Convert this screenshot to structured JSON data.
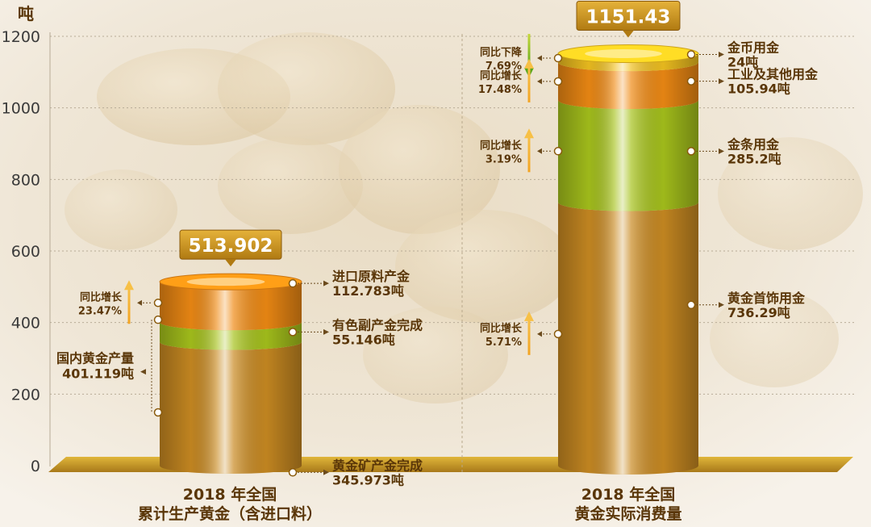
{
  "chart_data": {
    "type": "bar",
    "y_unit": "吨",
    "ylim": [
      0,
      1200
    ],
    "y_ticks": [
      "0",
      "200",
      "400",
      "600",
      "800",
      "1000",
      "1200"
    ],
    "grid": true,
    "categories": [
      {
        "line1": "2018 年全国",
        "line2": "累计生产黄金（含进口料）"
      },
      {
        "line1": "2018 年全国",
        "line2": "黄金实际消费量"
      }
    ],
    "columns": [
      {
        "total_label": "513.902",
        "total": 513.902,
        "segments": [
          {
            "name": "黄金矿产金完成",
            "value_label": "345.973吨",
            "value": 345.973,
            "color": "#c98a22"
          },
          {
            "name": "有色副产金完成",
            "value_label": "55.146吨",
            "value": 55.146,
            "color": "#a6c21c"
          },
          {
            "name": "进口原料产金",
            "value_label": "112.783吨",
            "value": 112.783,
            "color": "#ef8a14"
          }
        ],
        "group_bracket": {
          "name": "国内黄金产量",
          "value_label": "401.119吨",
          "value": 401.119
        },
        "changes": [
          {
            "label": "同比增长",
            "value": "23.47%",
            "direction": "up",
            "at": 455
          }
        ]
      },
      {
        "total_label": "1151.43",
        "total": 1151.43,
        "segments": [
          {
            "name": "黄金首饰用金",
            "value_label": "736.29吨",
            "value": 736.29,
            "color": "#c98a22"
          },
          {
            "name": "金条用金",
            "value_label": "285.2吨",
            "value": 285.2,
            "color": "#a6c21c"
          },
          {
            "name": "工业及其他用金",
            "value_label": "105.94吨",
            "value": 105.94,
            "color": "#ef8a14"
          },
          {
            "name": "金币用金",
            "value_label": "24吨",
            "value": 24,
            "color": "#f0c020"
          }
        ],
        "changes": [
          {
            "label": "同比增长",
            "value": "5.71%",
            "direction": "up",
            "at": 368
          },
          {
            "label": "同比增长",
            "value": "3.19%",
            "direction": "up",
            "at": 879
          },
          {
            "label": "同比下降",
            "value": "7.69%",
            "direction": "down",
            "at": 1139
          },
          {
            "label": "同比增长",
            "value": "17.48%",
            "direction": "up",
            "at": 1074
          }
        ]
      }
    ]
  }
}
